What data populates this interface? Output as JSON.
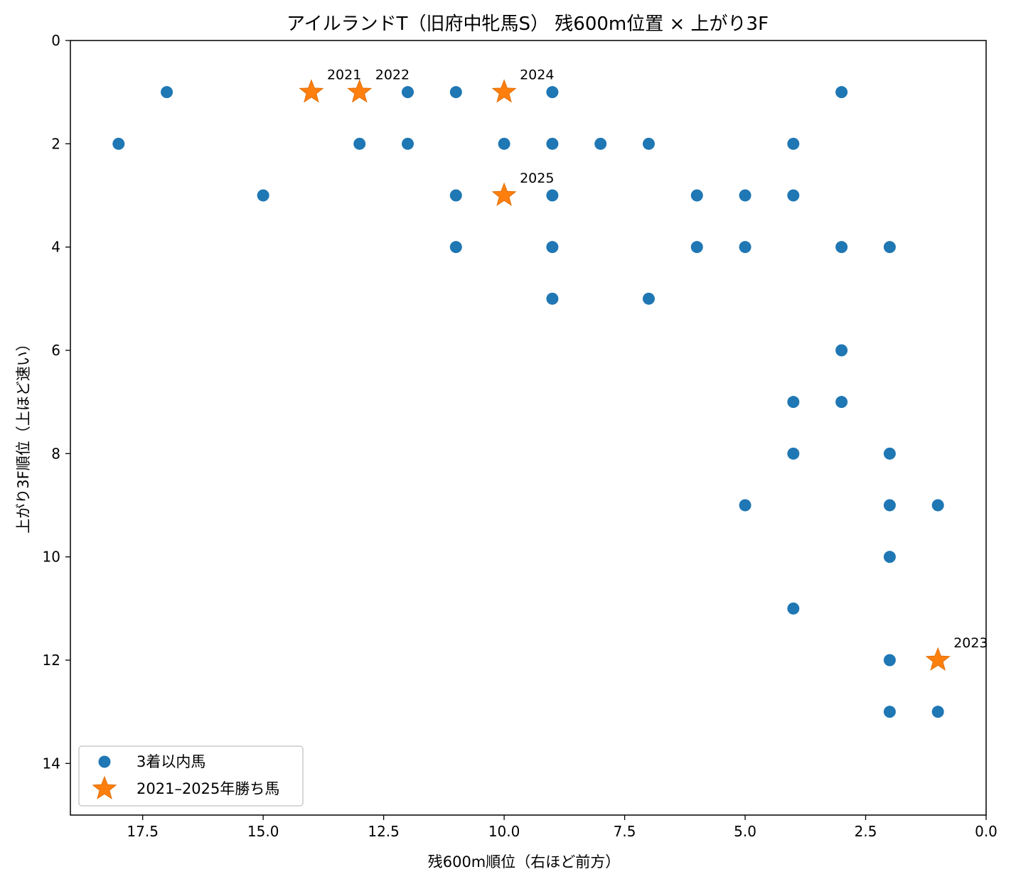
{
  "chart_data": {
    "type": "scatter",
    "title": "アイルランドT（旧府中牝馬S） 残600m位置 × 上がり3F",
    "xlabel": "残600m順位（右ほど前方）",
    "ylabel": "上がり3F順位（上ほど速い）",
    "xlim": [
      19,
      0
    ],
    "ylim": [
      15,
      0
    ],
    "x_inverted": true,
    "y_inverted": true,
    "xticks": [
      17.5,
      15.0,
      12.5,
      10.0,
      7.5,
      5.0,
      2.5,
      0.0
    ],
    "xtick_labels": [
      "17.5",
      "15.0",
      "12.5",
      "10.0",
      "7.5",
      "5.0",
      "2.5",
      "0.0"
    ],
    "yticks": [
      0,
      2,
      4,
      6,
      8,
      10,
      12,
      14
    ],
    "ytick_labels": [
      "0",
      "2",
      "4",
      "6",
      "8",
      "10",
      "12",
      "14"
    ],
    "legend_position": "lower-left",
    "grid": false,
    "series": [
      {
        "name": "3着以内馬",
        "marker": "circle",
        "color": "#1f77b4",
        "points": [
          [
            17,
            1
          ],
          [
            12,
            1
          ],
          [
            11,
            1
          ],
          [
            9,
            1
          ],
          [
            3,
            1
          ],
          [
            18,
            2
          ],
          [
            13,
            2
          ],
          [
            12,
            2
          ],
          [
            10,
            2
          ],
          [
            9,
            2
          ],
          [
            8,
            2
          ],
          [
            7,
            2
          ],
          [
            4,
            2
          ],
          [
            15,
            3
          ],
          [
            11,
            3
          ],
          [
            9,
            3
          ],
          [
            6,
            3
          ],
          [
            5,
            3
          ],
          [
            4,
            3
          ],
          [
            11,
            4
          ],
          [
            9,
            4
          ],
          [
            6,
            4
          ],
          [
            5,
            4
          ],
          [
            3,
            4
          ],
          [
            2,
            4
          ],
          [
            9,
            5
          ],
          [
            7,
            5
          ],
          [
            3,
            6
          ],
          [
            4,
            7
          ],
          [
            3,
            7
          ],
          [
            4,
            8
          ],
          [
            2,
            8
          ],
          [
            5,
            9
          ],
          [
            2,
            9
          ],
          [
            1,
            9
          ],
          [
            2,
            10
          ],
          [
            4,
            11
          ],
          [
            2,
            12
          ],
          [
            2,
            13
          ],
          [
            1,
            13
          ]
        ]
      },
      {
        "name": "2021–2025年勝ち馬",
        "marker": "star",
        "color": "#ff7f0e",
        "points": [
          [
            14,
            1,
            "2021"
          ],
          [
            13,
            1,
            "2022"
          ],
          [
            10,
            1,
            "2024"
          ],
          [
            10,
            3,
            "2025"
          ],
          [
            1,
            12,
            "2023"
          ]
        ]
      }
    ]
  }
}
